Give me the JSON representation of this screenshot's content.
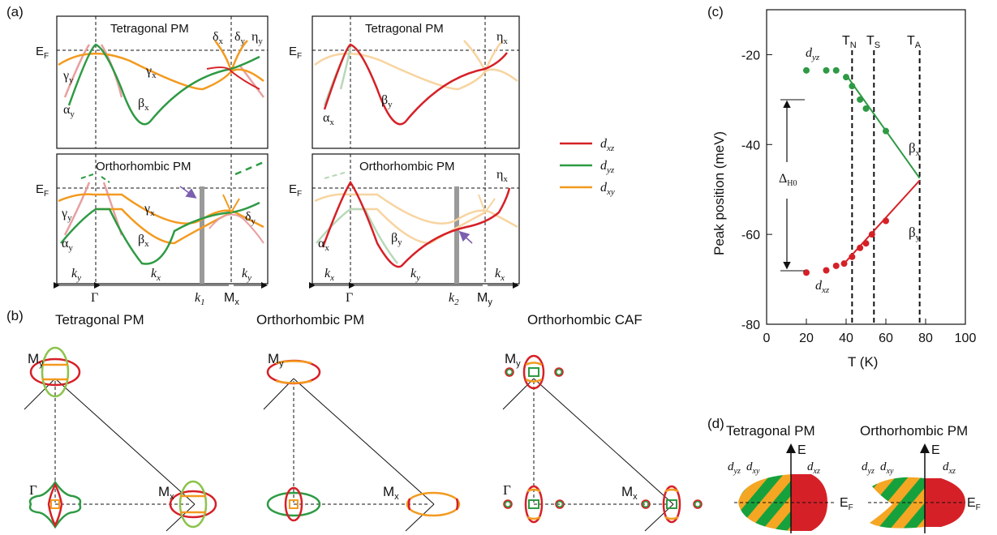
{
  "colors": {
    "dxz": "#d62027",
    "dyz": "#2e9a44",
    "dxy": "#f39a1f",
    "bar": "#9a9a9a",
    "arrow": "#7b5fb0"
  },
  "panel_a": {
    "label": "(a)",
    "fermi": "E",
    "fermi_sub": "F",
    "tl": {
      "title": "Tetragonal PM",
      "alpha_y": "α",
      "alpha_sub": "y",
      "beta": "β",
      "beta_sub": "x",
      "gamma_y": "γ",
      "gamma_y_sub": "y",
      "gamma_x": "γ",
      "gamma_x_sub": "x",
      "delta_x": "δ",
      "delta_x_sub": "x",
      "delta_y": "δ",
      "delta_y_sub": "y",
      "eta": "η",
      "eta_sub": "y"
    },
    "tr": {
      "title": "Tetragonal PM",
      "alpha": "α",
      "alpha_sub": "x",
      "beta": "β",
      "beta_sub": "y",
      "eta": "η",
      "eta_sub": "x"
    },
    "bl": {
      "title": "Orthorhombic PM",
      "gamma_y": "γ",
      "gamma_y_sub": "y",
      "gamma_x": "γ",
      "gamma_x_sub": "x",
      "alpha": "α",
      "alpha_sub": "y",
      "beta": "β",
      "beta_sub": "x",
      "delta": "δ",
      "delta_sub": "y",
      "ky1": "k",
      "ky1_sub": "y",
      "gamma_pt": "Γ",
      "kx": "k",
      "kx_sub": "x",
      "k1": "k",
      "k1_sub": "1",
      "m": "M",
      "m_sub": "x",
      "ky2": "k",
      "ky2_sub": "y"
    },
    "br": {
      "title": "Orthorhombic PM",
      "alpha": "α",
      "alpha_sub": "x",
      "beta": "β",
      "beta_sub": "y",
      "eta": "η",
      "eta_sub": "x",
      "kx1": "k",
      "kx1_sub": "x",
      "gamma_pt": "Γ",
      "ky": "k",
      "ky_sub": "y",
      "k2": "k",
      "k2_sub": "2",
      "m": "M",
      "m_sub": "y",
      "kx2": "k",
      "kx2_sub": "x"
    }
  },
  "legend": [
    {
      "name": "d",
      "sub": "xz",
      "color": "#d62027"
    },
    {
      "name": "d",
      "sub": "yz",
      "color": "#2e9a44"
    },
    {
      "name": "d",
      "sub": "xy",
      "color": "#f39a1f"
    }
  ],
  "panel_b": {
    "label": "(b)",
    "titles": [
      "Tetragonal PM",
      "Orthorhombic PM",
      "Orthorhombic CAF"
    ],
    "my": "M",
    "my_sub": "y",
    "mx": "M",
    "mx_sub": "x",
    "gamma": "Γ"
  },
  "panel_c": {
    "label": "(c)",
    "ylabel": "Peak position (meV)",
    "xlabel": "T (K)",
    "yticks": [
      "-20",
      "-40",
      "-60",
      "-80"
    ],
    "xticks": [
      "0",
      "20",
      "40",
      "60",
      "80",
      "100"
    ],
    "tn": "T",
    "tn_sub": "N",
    "ts": "T",
    "ts_sub": "S",
    "ta": "T",
    "ta_sub": "A",
    "dyz": "d",
    "dyz_sub": "yz",
    "dxz": "d",
    "dxz_sub": "xz",
    "beta_x": "β",
    "beta_x_sub": "x",
    "beta_y": "β",
    "beta_y_sub": "y",
    "delta": "Δ",
    "delta_sub": "H0"
  },
  "chart_data": {
    "type": "scatter",
    "xlabel": "T (K)",
    "ylabel": "Peak position (meV)",
    "xlim": [
      0,
      100
    ],
    "ylim": [
      -80,
      -10
    ],
    "vlines": [
      {
        "label": "T_N",
        "x": 43
      },
      {
        "label": "T_S",
        "x": 54
      },
      {
        "label": "T_A",
        "x": 77
      }
    ],
    "series": [
      {
        "name": "β_x (d_yz)",
        "color": "#2e9a44",
        "x": [
          20,
          30,
          35,
          40,
          43,
          47,
          50,
          60
        ],
        "y": [
          -23.5,
          -23.5,
          -23.5,
          -25,
          -27,
          -30,
          -32,
          -37
        ],
        "fit": {
          "x": [
            40,
            77
          ],
          "y": [
            -24.5,
            -47.5
          ]
        }
      },
      {
        "name": "β_y (d_xz)",
        "color": "#d62027",
        "x": [
          20,
          30,
          35,
          39,
          43,
          47,
          50,
          53,
          60
        ],
        "y": [
          -68.5,
          -68,
          -67,
          -66.5,
          -65,
          -63,
          -62,
          -60,
          -57
        ],
        "fit": {
          "x": [
            40,
            77
          ],
          "y": [
            -66,
            -48
          ]
        }
      }
    ]
  },
  "panel_d": {
    "label": "(d)",
    "titles": [
      "Tetragonal PM",
      "Orthorhombic PM"
    ],
    "e": "E",
    "ef": "E",
    "ef_sub": "F",
    "dyz": "d",
    "dyz_sub": "yz",
    "dxy": "d",
    "dxy_sub": "xy",
    "dxz": "d",
    "dxz_sub": "xz"
  }
}
